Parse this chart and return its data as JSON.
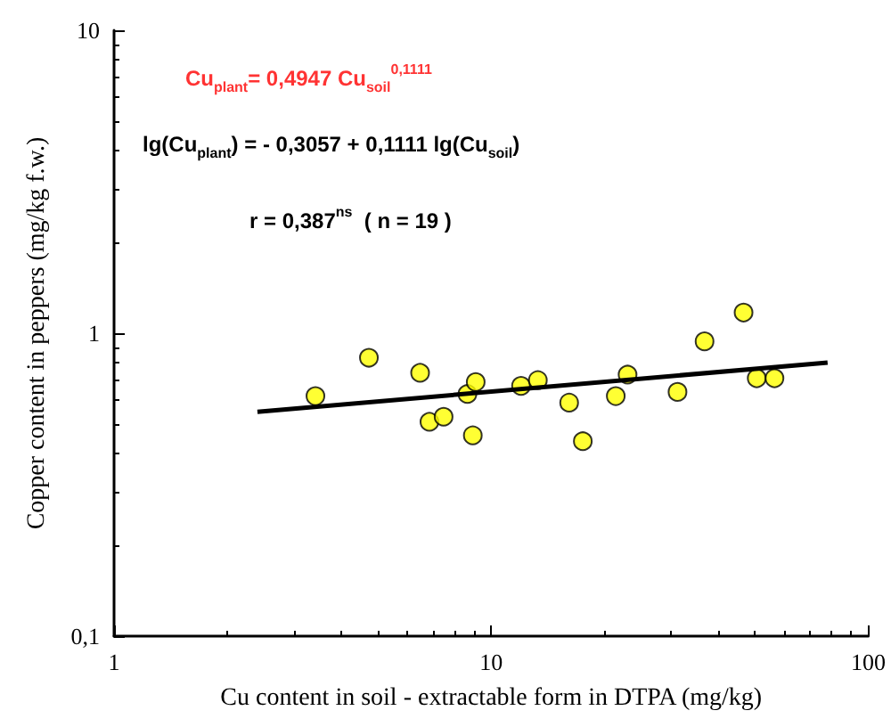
{
  "chart_data": {
    "type": "scatter",
    "xlabel": "Cu content in soil - extractable form in DTPA (mg/kg)",
    "ylabel": "Copper content in peppers (mg/kg f.w.)",
    "log": "xy",
    "xlim": [
      1,
      100
    ],
    "ylim": [
      0.1,
      10
    ],
    "xticks": [
      1,
      10,
      100
    ],
    "yticks": [
      {
        "value": 0.1,
        "label": "0,1"
      },
      1,
      10
    ],
    "marker": "circle",
    "annotations": [
      "Cu$_{plant}$= 0,4947 Cu$_{soil}$$^{0,1111}$",
      "lg(Cu$_{plant}$) = - 0,3057 + 0,1111 lg(Cu$_{soil}$)",
      "r = 0,387$^{ns}$  ( n = 19 )"
    ],
    "series": [
      {
        "color": "#ffff00",
        "x": [
          3.42,
          4.74,
          6.48,
          6.86,
          7.48,
          8.65,
          9.1,
          8.94,
          12.0,
          13.3,
          16.1,
          17.5,
          21.4,
          23.0,
          31.2,
          36.8,
          46.7,
          50.6,
          56.4
        ],
        "values": [
          0.62,
          0.83,
          0.74,
          0.51,
          0.53,
          0.63,
          0.69,
          0.46,
          0.67,
          0.7,
          0.59,
          0.44,
          0.62,
          0.73,
          0.64,
          0.94,
          1.17,
          0.71,
          0.71
        ]
      },
      {
        "type": "line",
        "color": "#000000",
        "marker": "none",
        "x": [
          2.4,
          78
        ],
        "values": [
          0.55,
          0.8
        ]
      }
    ]
  }
}
